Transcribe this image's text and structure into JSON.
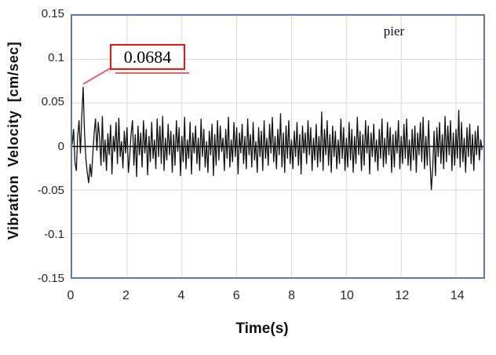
{
  "colors": {
    "plot_border": "#5f7aa8",
    "gridline": "#d9d9d9",
    "signal": "#111111",
    "zero_axis": "#000000",
    "annotation_red": "#ee1515",
    "leader_red": "#e06666",
    "text": "#262626",
    "background": "#ffffff"
  },
  "chart_data": {
    "type": "line",
    "title": "",
    "series_label": "pier",
    "xlabel": "Time(s)",
    "ylabel": "Vibration Velocity [cm/sec]",
    "xlim": [
      0,
      15
    ],
    "ylim": [
      -0.15,
      0.15
    ],
    "grid": true,
    "x_ticks": [
      0,
      2,
      4,
      6,
      8,
      10,
      12,
      14
    ],
    "y_ticks": [
      {
        "v": 0.15,
        "label": "0.15"
      },
      {
        "v": 0.1,
        "label": "0.1"
      },
      {
        "v": 0.05,
        "label": "0.05"
      },
      {
        "v": 0,
        "label": "0"
      },
      {
        "v": -0.05,
        "label": "-0.05"
      },
      {
        "v": -0.1,
        "label": "-0.1"
      },
      {
        "v": -0.15,
        "label": "-0.15"
      }
    ],
    "x_grid": [
      2,
      4,
      6,
      8,
      10,
      12,
      14
    ],
    "y_grid": [
      -0.1,
      -0.05,
      0.05,
      0.1
    ],
    "annotation": {
      "label": "0.0684",
      "value": 0.0684,
      "time": 0.4
    },
    "max_value": 0.0684,
    "min_value": -0.05,
    "signal": {
      "t0": 0,
      "dt": 0.05,
      "values": [
        0.002,
        0.02,
        -0.018,
        -0.028,
        0.012,
        0.03,
        -0.008,
        0.035,
        0.0684,
        0.015,
        -0.015,
        -0.03,
        -0.042,
        -0.02,
        -0.035,
        -0.01,
        0.015,
        0.032,
        -0.005,
        0.028,
        0.01,
        -0.022,
        0.035,
        -0.018,
        0.008,
        -0.028,
        0.015,
        -0.01,
        0.025,
        -0.032,
        0.012,
        -0.006,
        0.028,
        -0.02,
        0.033,
        -0.012,
        0.006,
        -0.025,
        0.018,
        -0.008,
        0.022,
        -0.03,
        -0.01,
        0.015,
        0.03,
        -0.022,
        0.014,
        -0.035,
        0.024,
        -0.01,
        0.016,
        -0.024,
        0.03,
        -0.008,
        0.02,
        -0.033,
        0.012,
        -0.018,
        0.028,
        -0.014,
        0.008,
        -0.026,
        0.032,
        -0.012,
        0.024,
        -0.02,
        0.035,
        -0.028,
        0.01,
        -0.016,
        0.026,
        -0.01,
        0.018,
        -0.03,
        0.014,
        -0.022,
        0.03,
        -0.006,
        0.022,
        -0.034,
        0.012,
        -0.018,
        0.034,
        -0.026,
        0.008,
        -0.014,
        0.028,
        -0.032,
        0.016,
        -0.008,
        0.024,
        -0.02,
        0.01,
        -0.028,
        0.032,
        -0.012,
        0.02,
        -0.024,
        0.006,
        -0.03,
        0.018,
        -0.01,
        0.026,
        -0.034,
        0.014,
        -0.022,
        0.03,
        -0.016,
        0.024,
        -0.006,
        0.01,
        -0.028,
        0.02,
        -0.014,
        0.034,
        -0.024,
        0.008,
        -0.018,
        0.028,
        -0.012,
        0.022,
        -0.032,
        0.016,
        -0.008,
        0.026,
        -0.02,
        0.012,
        -0.026,
        0.032,
        -0.01,
        0.014,
        -0.024,
        0.028,
        -0.016,
        0.006,
        -0.03,
        0.022,
        -0.012,
        0.018,
        -0.028,
        0.03,
        -0.014,
        0.01,
        -0.022,
        0.026,
        -0.008,
        0.034,
        -0.018,
        0.012,
        -0.026,
        0.02,
        -0.01,
        0.038,
        -0.024,
        0.016,
        -0.03,
        0.024,
        -0.014,
        0.03,
        -0.02,
        0.008,
        -0.026,
        0.018,
        -0.012,
        0.028,
        -0.022,
        0.014,
        -0.032,
        0.024,
        -0.008,
        0.016,
        -0.02,
        0.03,
        -0.01,
        0.022,
        -0.028,
        0.01,
        -0.016,
        0.026,
        -0.024,
        0.012,
        -0.018,
        0.04,
        -0.028,
        0.02,
        -0.01,
        0.03,
        -0.022,
        0.014,
        -0.03,
        0.024,
        -0.012,
        0.018,
        -0.026,
        0.008,
        -0.02,
        0.032,
        -0.014,
        0.022,
        -0.028,
        0.01,
        -0.024,
        0.028,
        -0.016,
        0.02,
        -0.03,
        0.012,
        -0.02,
        0.034,
        -0.01,
        0.018,
        -0.028,
        0.014,
        -0.022,
        0.03,
        -0.008,
        0.024,
        -0.032,
        0.016,
        -0.012,
        0.026,
        -0.018,
        0.008,
        -0.028,
        0.02,
        -0.014,
        0.032,
        -0.024,
        0.01,
        -0.02,
        0.028,
        -0.01,
        0.022,
        -0.03,
        0.014,
        -0.024,
        0.018,
        -0.008,
        0.03,
        -0.026,
        0.012,
        -0.02,
        0.026,
        -0.014,
        0.032,
        -0.022,
        0.008,
        -0.028,
        0.02,
        -0.016,
        0.024,
        -0.03,
        0.016,
        -0.01,
        0.028,
        -0.018,
        0.034,
        -0.026,
        0.012,
        -0.022,
        0.03,
        -0.016,
        -0.05,
        -0.024,
        0.018,
        -0.034,
        0.022,
        -0.012,
        0.028,
        -0.02,
        0.014,
        -0.026,
        0.035,
        -0.018,
        0.024,
        -0.01,
        0.03,
        -0.028,
        0.016,
        -0.022,
        0.02,
        -0.014,
        0.042,
        -0.024,
        0.028,
        -0.018,
        0.01,
        -0.03,
        0.022,
        -0.012,
        0.026,
        -0.02,
        0.014,
        -0.028,
        0.018,
        -0.01,
        0.024,
        -0.016,
        0.008,
        -0.004
      ]
    }
  }
}
